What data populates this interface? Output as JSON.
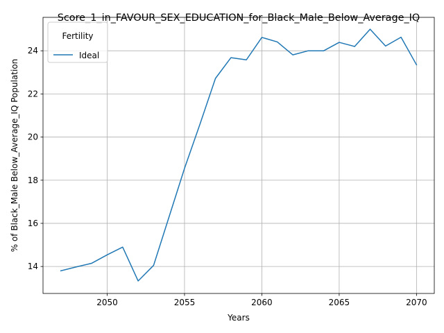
{
  "chart_data": {
    "type": "line",
    "title": "Score_1_in_FAVOUR_SEX_EDUCATION_for_Black_Male_Below_Average_IQ",
    "xlabel": "Years",
    "ylabel": "% of Black_Male Below_Average_IQ Population",
    "xlim": [
      2045.85,
      2071.15
    ],
    "ylim": [
      12.75,
      25.55
    ],
    "xticks": [
      2050,
      2055,
      2060,
      2065,
      2070
    ],
    "yticks": [
      14,
      16,
      18,
      20,
      22,
      24
    ],
    "grid": true,
    "legend": {
      "title": "Fertility",
      "placement": "upper left"
    },
    "series": [
      {
        "name": "Ideal",
        "color": "#1f77b4",
        "x": [
          2047,
          2048,
          2049,
          2050,
          2051,
          2052,
          2053,
          2054,
          2055,
          2056,
          2057,
          2058,
          2059,
          2060,
          2061,
          2062,
          2063,
          2064,
          2065,
          2066,
          2067,
          2068,
          2069,
          2070
        ],
        "y": [
          13.8,
          13.98,
          14.15,
          14.54,
          14.9,
          13.33,
          14.05,
          16.3,
          18.55,
          20.6,
          22.72,
          23.68,
          23.58,
          24.62,
          24.41,
          23.81,
          24.0,
          24.0,
          24.39,
          24.2,
          25.0,
          24.22,
          24.63,
          23.35
        ]
      }
    ]
  }
}
